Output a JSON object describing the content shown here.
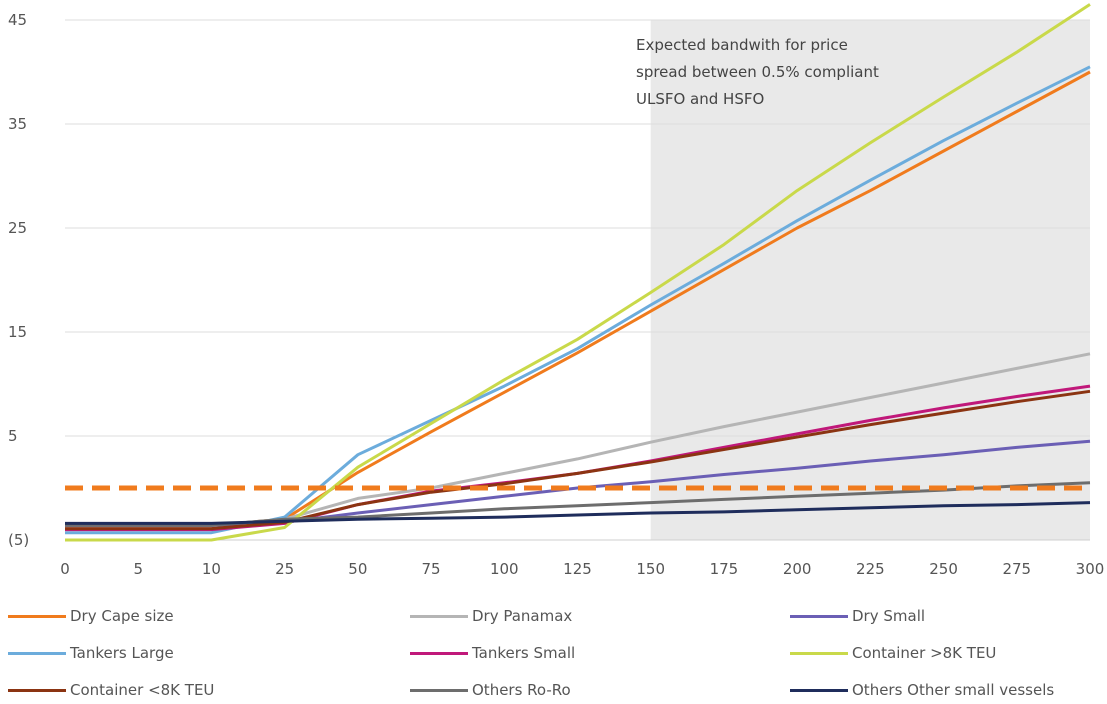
{
  "chart_data": {
    "type": "line",
    "title": "",
    "xlabel": "",
    "ylabel": "",
    "x_ticks": [
      "0",
      "5",
      "10",
      "25",
      "50",
      "75",
      "100",
      "125",
      "150",
      "175",
      "200",
      "225",
      "250",
      "275",
      "300"
    ],
    "y_ticks": [
      {
        "value": 45,
        "label": "45"
      },
      {
        "value": 35,
        "label": "35"
      },
      {
        "value": 25,
        "label": "25"
      },
      {
        "value": 15,
        "label": "15"
      },
      {
        "value": 5,
        "label": "5"
      },
      {
        "value": -5,
        "label": "(5)"
      }
    ],
    "ylim": [
      -5,
      45
    ],
    "grid": "horizontal",
    "legend_position": "bottom",
    "shaded_region": {
      "from_tick": "150",
      "to_tick": "300",
      "color": "#e9e9e9"
    },
    "annotation": {
      "lines": [
        "Expected bandwith for price",
        "spread between 0.5% compliant",
        "ULSFO and HSFO"
      ]
    },
    "reference_lines": [
      {
        "y": 0,
        "color": "#f07b1d",
        "style": "dashed"
      }
    ],
    "series": [
      {
        "name": "Dry Cape size",
        "color": "#f07b1d",
        "points": [
          [
            "0",
            -3.6
          ],
          [
            "5",
            -3.6
          ],
          [
            "10",
            -3.6
          ],
          [
            "25",
            -3.0
          ],
          [
            "50",
            1.5
          ],
          [
            "75",
            5.4
          ],
          [
            "100",
            9.2
          ],
          [
            "125",
            13.0
          ],
          [
            "150",
            17.0
          ],
          [
            "175",
            21.0
          ],
          [
            "200",
            25.0
          ],
          [
            "225",
            28.6
          ],
          [
            "250",
            32.4
          ],
          [
            "275",
            36.2
          ],
          [
            "300",
            40.0
          ]
        ]
      },
      {
        "name": "Dry Panamax",
        "color": "#b5b5b5",
        "points": [
          [
            "0",
            -3.6
          ],
          [
            "5",
            -3.6
          ],
          [
            "10",
            -3.6
          ],
          [
            "25",
            -3.0
          ],
          [
            "50",
            -1.0
          ],
          [
            "75",
            0.0
          ],
          [
            "100",
            1.4
          ],
          [
            "125",
            2.8
          ],
          [
            "150",
            4.4
          ],
          [
            "175",
            5.9
          ],
          [
            "200",
            7.3
          ],
          [
            "225",
            8.7
          ],
          [
            "250",
            10.1
          ],
          [
            "275",
            11.5
          ],
          [
            "300",
            12.9
          ]
        ]
      },
      {
        "name": "Dry Small",
        "color": "#6b5fb5",
        "points": [
          [
            "0",
            -3.6
          ],
          [
            "5",
            -3.6
          ],
          [
            "10",
            -3.6
          ],
          [
            "25",
            -3.3
          ],
          [
            "50",
            -2.4
          ],
          [
            "75",
            -1.6
          ],
          [
            "100",
            -0.8
          ],
          [
            "125",
            0.0
          ],
          [
            "150",
            0.6
          ],
          [
            "175",
            1.3
          ],
          [
            "200",
            1.9
          ],
          [
            "225",
            2.6
          ],
          [
            "250",
            3.2
          ],
          [
            "275",
            3.9
          ],
          [
            "300",
            4.5
          ]
        ]
      },
      {
        "name": "Tankers Large",
        "color": "#6cacdc",
        "points": [
          [
            "0",
            -4.3
          ],
          [
            "5",
            -4.3
          ],
          [
            "10",
            -4.3
          ],
          [
            "25",
            -2.8
          ],
          [
            "50",
            3.2
          ],
          [
            "75",
            6.5
          ],
          [
            "100",
            9.8
          ],
          [
            "125",
            13.4
          ],
          [
            "150",
            17.6
          ],
          [
            "175",
            21.6
          ],
          [
            "200",
            25.7
          ],
          [
            "225",
            29.6
          ],
          [
            "250",
            33.4
          ],
          [
            "275",
            37.0
          ],
          [
            "300",
            40.5
          ]
        ]
      },
      {
        "name": "Tankers Small",
        "color": "#c0187a",
        "points": [
          [
            "0",
            -4.0
          ],
          [
            "5",
            -4.0
          ],
          [
            "10",
            -4.0
          ],
          [
            "25",
            -3.4
          ],
          [
            "50",
            -1.6
          ],
          [
            "75",
            -0.3
          ],
          [
            "100",
            0.5
          ],
          [
            "125",
            1.4
          ],
          [
            "150",
            2.6
          ],
          [
            "175",
            3.9
          ],
          [
            "200",
            5.2
          ],
          [
            "225",
            6.5
          ],
          [
            "250",
            7.7
          ],
          [
            "275",
            8.8
          ],
          [
            "300",
            9.8
          ]
        ]
      },
      {
        "name": "Container >8K TEU",
        "color": "#c9d94a",
        "points": [
          [
            "0",
            -5.0
          ],
          [
            "5",
            -5.0
          ],
          [
            "10",
            -5.0
          ],
          [
            "25",
            -3.8
          ],
          [
            "50",
            2.0
          ],
          [
            "75",
            6.2
          ],
          [
            "100",
            10.4
          ],
          [
            "125",
            14.3
          ],
          [
            "150",
            18.8
          ],
          [
            "175",
            23.4
          ],
          [
            "200",
            28.6
          ],
          [
            "225",
            33.2
          ],
          [
            "250",
            37.6
          ],
          [
            "275",
            41.9
          ],
          [
            "300",
            46.5
          ]
        ]
      },
      {
        "name": "Container <8K TEU",
        "color": "#8b3412",
        "points": [
          [
            "0",
            -3.9
          ],
          [
            "5",
            -3.9
          ],
          [
            "10",
            -3.9
          ],
          [
            "25",
            -3.3
          ],
          [
            "50",
            -1.6
          ],
          [
            "75",
            -0.4
          ],
          [
            "100",
            0.4
          ],
          [
            "125",
            1.4
          ],
          [
            "150",
            2.5
          ],
          [
            "175",
            3.7
          ],
          [
            "200",
            4.9
          ],
          [
            "225",
            6.1
          ],
          [
            "250",
            7.2
          ],
          [
            "275",
            8.3
          ],
          [
            "300",
            9.3
          ]
        ]
      },
      {
        "name": "Others Ro-Ro",
        "color": "#6d6d6d",
        "points": [
          [
            "0",
            -3.6
          ],
          [
            "5",
            -3.6
          ],
          [
            "10",
            -3.6
          ],
          [
            "25",
            -3.0
          ],
          [
            "50",
            -2.8
          ],
          [
            "75",
            -2.4
          ],
          [
            "100",
            -2.0
          ],
          [
            "125",
            -1.7
          ],
          [
            "150",
            -1.4
          ],
          [
            "175",
            -1.1
          ],
          [
            "200",
            -0.8
          ],
          [
            "225",
            -0.5
          ],
          [
            "250",
            -0.2
          ],
          [
            "275",
            0.2
          ],
          [
            "300",
            0.5
          ]
        ]
      },
      {
        "name": "Others Other small vessels",
        "color": "#1f2d5c",
        "points": [
          [
            "0",
            -3.4
          ],
          [
            "5",
            -3.4
          ],
          [
            "10",
            -3.4
          ],
          [
            "25",
            -3.2
          ],
          [
            "50",
            -3.0
          ],
          [
            "75",
            -2.9
          ],
          [
            "100",
            -2.8
          ],
          [
            "125",
            -2.6
          ],
          [
            "150",
            -2.4
          ],
          [
            "175",
            -2.3
          ],
          [
            "200",
            -2.1
          ],
          [
            "225",
            -1.9
          ],
          [
            "250",
            -1.7
          ],
          [
            "275",
            -1.6
          ],
          [
            "300",
            -1.4
          ]
        ]
      }
    ]
  }
}
